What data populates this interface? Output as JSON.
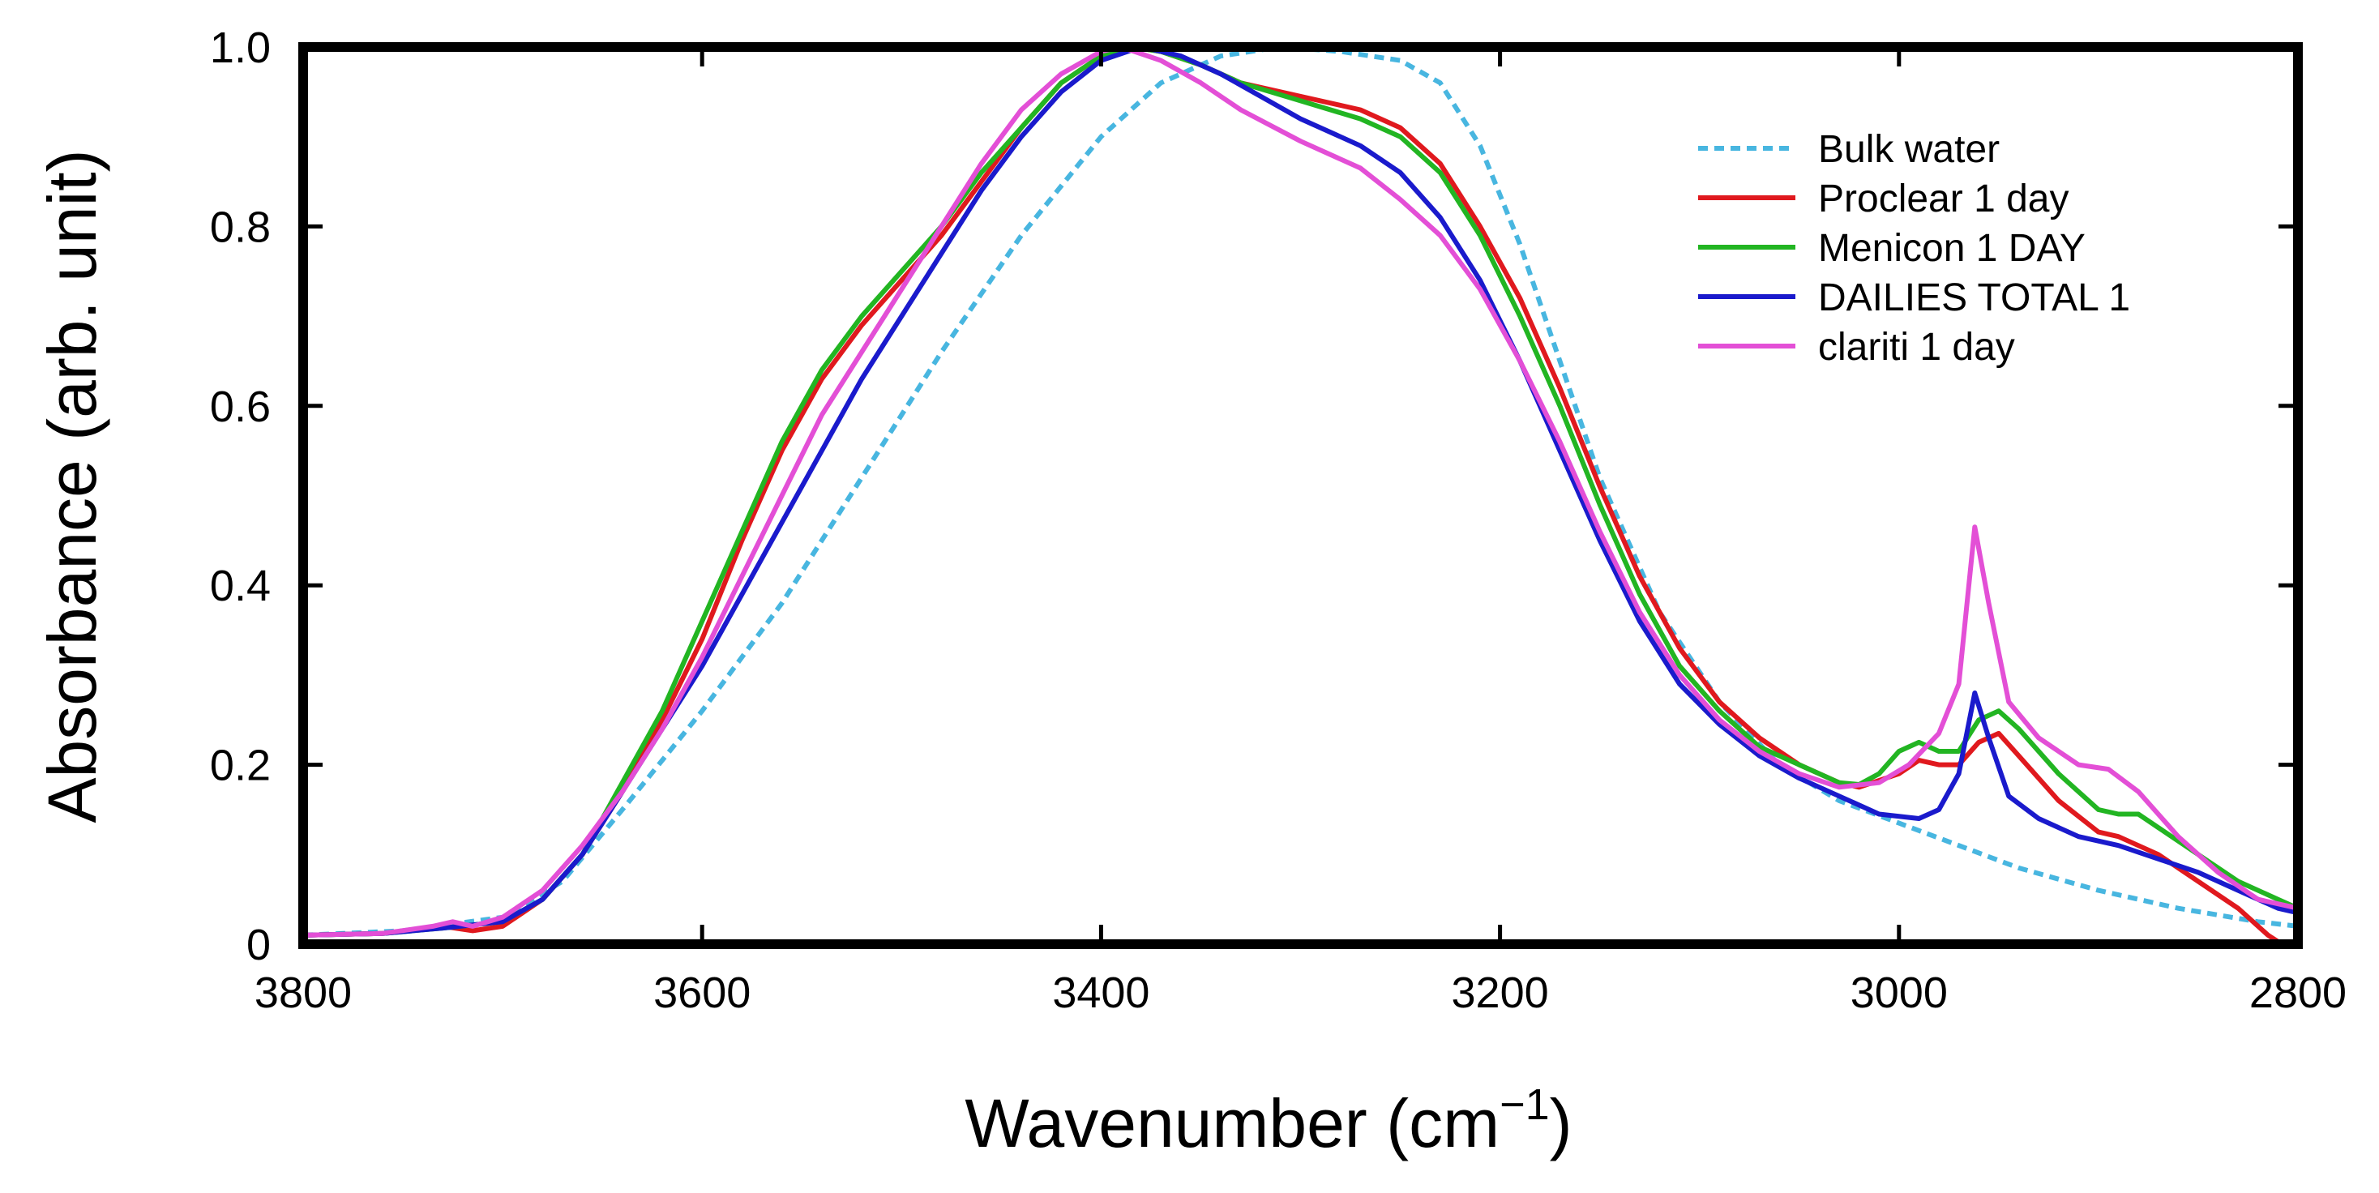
{
  "chart_data": {
    "type": "line",
    "title": "",
    "xlabel": "Wavenumber (cm",
    "xlabel_sup": "−1",
    "xlabel_close": ")",
    "ylabel": "Absorbance (arb. unit)",
    "xlim": [
      3800,
      2800
    ],
    "ylim": [
      0,
      1.0
    ],
    "x_reversed": true,
    "x_ticks": [
      3800,
      3600,
      3400,
      3200,
      3000,
      2800
    ],
    "x_tick_labels": [
      "3800",
      "3600",
      "3400",
      "3200",
      "3000",
      "2800"
    ],
    "y_ticks": [
      0,
      0.2,
      0.4,
      0.6,
      0.8,
      1.0
    ],
    "y_tick_labels": [
      "0",
      "0.2",
      "0.4",
      "0.6",
      "0.8",
      "1.0"
    ],
    "legend_position": "top-right",
    "grid": false,
    "series": [
      {
        "name": "Bulk water",
        "color": "#48b6e0",
        "dashed": true,
        "points": [
          [
            3800,
            0.01
          ],
          [
            3750,
            0.015
          ],
          [
            3700,
            0.03
          ],
          [
            3670,
            0.07
          ],
          [
            3640,
            0.15
          ],
          [
            3600,
            0.26
          ],
          [
            3560,
            0.38
          ],
          [
            3520,
            0.52
          ],
          [
            3480,
            0.66
          ],
          [
            3440,
            0.79
          ],
          [
            3400,
            0.9
          ],
          [
            3370,
            0.96
          ],
          [
            3340,
            0.99
          ],
          [
            3310,
            1.0
          ],
          [
            3280,
            0.995
          ],
          [
            3250,
            0.985
          ],
          [
            3230,
            0.96
          ],
          [
            3210,
            0.89
          ],
          [
            3190,
            0.78
          ],
          [
            3170,
            0.65
          ],
          [
            3150,
            0.52
          ],
          [
            3120,
            0.37
          ],
          [
            3090,
            0.27
          ],
          [
            3060,
            0.2
          ],
          [
            3030,
            0.16
          ],
          [
            3000,
            0.135
          ],
          [
            2970,
            0.11
          ],
          [
            2940,
            0.085
          ],
          [
            2900,
            0.06
          ],
          [
            2860,
            0.04
          ],
          [
            2820,
            0.025
          ],
          [
            2800,
            0.02
          ]
        ]
      },
      {
        "name": "Proclear 1 day",
        "color": "#e0191e",
        "dashed": false,
        "points": [
          [
            3800,
            0.01
          ],
          [
            3760,
            0.012
          ],
          [
            3730,
            0.02
          ],
          [
            3715,
            0.015
          ],
          [
            3700,
            0.02
          ],
          [
            3680,
            0.05
          ],
          [
            3660,
            0.1
          ],
          [
            3640,
            0.17
          ],
          [
            3620,
            0.25
          ],
          [
            3600,
            0.34
          ],
          [
            3580,
            0.45
          ],
          [
            3560,
            0.55
          ],
          [
            3540,
            0.63
          ],
          [
            3520,
            0.69
          ],
          [
            3500,
            0.74
          ],
          [
            3480,
            0.79
          ],
          [
            3460,
            0.85
          ],
          [
            3440,
            0.91
          ],
          [
            3420,
            0.96
          ],
          [
            3400,
            0.99
          ],
          [
            3385,
            1.0
          ],
          [
            3370,
            0.995
          ],
          [
            3350,
            0.98
          ],
          [
            3330,
            0.96
          ],
          [
            3300,
            0.945
          ],
          [
            3270,
            0.93
          ],
          [
            3250,
            0.91
          ],
          [
            3230,
            0.87
          ],
          [
            3210,
            0.8
          ],
          [
            3190,
            0.72
          ],
          [
            3170,
            0.62
          ],
          [
            3150,
            0.51
          ],
          [
            3130,
            0.41
          ],
          [
            3110,
            0.33
          ],
          [
            3090,
            0.27
          ],
          [
            3070,
            0.23
          ],
          [
            3050,
            0.2
          ],
          [
            3030,
            0.18
          ],
          [
            3020,
            0.175
          ],
          [
            3000,
            0.19
          ],
          [
            2990,
            0.205
          ],
          [
            2980,
            0.2
          ],
          [
            2970,
            0.2
          ],
          [
            2960,
            0.225
          ],
          [
            2950,
            0.235
          ],
          [
            2940,
            0.21
          ],
          [
            2920,
            0.16
          ],
          [
            2900,
            0.125
          ],
          [
            2890,
            0.12
          ],
          [
            2870,
            0.1
          ],
          [
            2850,
            0.07
          ],
          [
            2830,
            0.04
          ],
          [
            2815,
            0.01
          ],
          [
            2808,
            0.0
          ]
        ]
      },
      {
        "name": "Menicon 1 DAY",
        "color": "#22b522",
        "dashed": false,
        "points": [
          [
            3800,
            0.01
          ],
          [
            3760,
            0.012
          ],
          [
            3730,
            0.018
          ],
          [
            3700,
            0.025
          ],
          [
            3680,
            0.05
          ],
          [
            3660,
            0.1
          ],
          [
            3640,
            0.18
          ],
          [
            3620,
            0.26
          ],
          [
            3600,
            0.36
          ],
          [
            3580,
            0.46
          ],
          [
            3560,
            0.56
          ],
          [
            3540,
            0.64
          ],
          [
            3520,
            0.7
          ],
          [
            3500,
            0.75
          ],
          [
            3480,
            0.8
          ],
          [
            3460,
            0.86
          ],
          [
            3440,
            0.91
          ],
          [
            3420,
            0.96
          ],
          [
            3400,
            0.99
          ],
          [
            3385,
            1.0
          ],
          [
            3370,
            0.995
          ],
          [
            3350,
            0.98
          ],
          [
            3330,
            0.96
          ],
          [
            3300,
            0.94
          ],
          [
            3270,
            0.92
          ],
          [
            3250,
            0.9
          ],
          [
            3230,
            0.86
          ],
          [
            3210,
            0.79
          ],
          [
            3190,
            0.7
          ],
          [
            3170,
            0.6
          ],
          [
            3150,
            0.49
          ],
          [
            3130,
            0.39
          ],
          [
            3110,
            0.31
          ],
          [
            3090,
            0.26
          ],
          [
            3070,
            0.22
          ],
          [
            3050,
            0.2
          ],
          [
            3030,
            0.18
          ],
          [
            3020,
            0.178
          ],
          [
            3010,
            0.19
          ],
          [
            3000,
            0.215
          ],
          [
            2990,
            0.225
          ],
          [
            2980,
            0.215
          ],
          [
            2970,
            0.215
          ],
          [
            2960,
            0.25
          ],
          [
            2950,
            0.26
          ],
          [
            2940,
            0.24
          ],
          [
            2920,
            0.19
          ],
          [
            2900,
            0.15
          ],
          [
            2890,
            0.145
          ],
          [
            2880,
            0.145
          ],
          [
            2870,
            0.13
          ],
          [
            2850,
            0.1
          ],
          [
            2830,
            0.07
          ],
          [
            2810,
            0.05
          ],
          [
            2800,
            0.04
          ]
        ]
      },
      {
        "name": "DAILIES TOTAL 1",
        "color": "#1a1acc",
        "dashed": false,
        "points": [
          [
            3800,
            0.01
          ],
          [
            3760,
            0.012
          ],
          [
            3730,
            0.018
          ],
          [
            3700,
            0.025
          ],
          [
            3680,
            0.05
          ],
          [
            3660,
            0.1
          ],
          [
            3640,
            0.17
          ],
          [
            3620,
            0.24
          ],
          [
            3600,
            0.31
          ],
          [
            3580,
            0.39
          ],
          [
            3560,
            0.47
          ],
          [
            3540,
            0.55
          ],
          [
            3520,
            0.63
          ],
          [
            3500,
            0.7
          ],
          [
            3480,
            0.77
          ],
          [
            3460,
            0.84
          ],
          [
            3440,
            0.9
          ],
          [
            3420,
            0.95
          ],
          [
            3400,
            0.985
          ],
          [
            3380,
            1.0
          ],
          [
            3360,
            0.99
          ],
          [
            3340,
            0.97
          ],
          [
            3320,
            0.945
          ],
          [
            3300,
            0.92
          ],
          [
            3270,
            0.89
          ],
          [
            3250,
            0.86
          ],
          [
            3230,
            0.81
          ],
          [
            3210,
            0.74
          ],
          [
            3190,
            0.65
          ],
          [
            3170,
            0.55
          ],
          [
            3150,
            0.45
          ],
          [
            3130,
            0.36
          ],
          [
            3110,
            0.29
          ],
          [
            3090,
            0.245
          ],
          [
            3070,
            0.21
          ],
          [
            3050,
            0.185
          ],
          [
            3030,
            0.165
          ],
          [
            3010,
            0.145
          ],
          [
            2990,
            0.14
          ],
          [
            2980,
            0.15
          ],
          [
            2970,
            0.19
          ],
          [
            2962,
            0.28
          ],
          [
            2955,
            0.23
          ],
          [
            2945,
            0.165
          ],
          [
            2930,
            0.14
          ],
          [
            2910,
            0.12
          ],
          [
            2890,
            0.11
          ],
          [
            2870,
            0.095
          ],
          [
            2850,
            0.08
          ],
          [
            2830,
            0.06
          ],
          [
            2810,
            0.04
          ],
          [
            2800,
            0.035
          ]
        ]
      },
      {
        "name": "clariti 1 day",
        "color": "#e34fd6",
        "dashed": false,
        "points": [
          [
            3800,
            0.01
          ],
          [
            3760,
            0.012
          ],
          [
            3735,
            0.02
          ],
          [
            3725,
            0.025
          ],
          [
            3715,
            0.02
          ],
          [
            3700,
            0.03
          ],
          [
            3680,
            0.06
          ],
          [
            3660,
            0.11
          ],
          [
            3640,
            0.17
          ],
          [
            3620,
            0.24
          ],
          [
            3600,
            0.32
          ],
          [
            3580,
            0.41
          ],
          [
            3560,
            0.5
          ],
          [
            3540,
            0.59
          ],
          [
            3520,
            0.66
          ],
          [
            3500,
            0.73
          ],
          [
            3480,
            0.8
          ],
          [
            3460,
            0.87
          ],
          [
            3440,
            0.93
          ],
          [
            3420,
            0.97
          ],
          [
            3400,
            0.995
          ],
          [
            3390,
            1.0
          ],
          [
            3370,
            0.985
          ],
          [
            3350,
            0.96
          ],
          [
            3330,
            0.93
          ],
          [
            3300,
            0.895
          ],
          [
            3270,
            0.865
          ],
          [
            3250,
            0.83
          ],
          [
            3230,
            0.79
          ],
          [
            3210,
            0.73
          ],
          [
            3190,
            0.65
          ],
          [
            3170,
            0.56
          ],
          [
            3150,
            0.46
          ],
          [
            3130,
            0.37
          ],
          [
            3110,
            0.3
          ],
          [
            3090,
            0.25
          ],
          [
            3070,
            0.215
          ],
          [
            3050,
            0.19
          ],
          [
            3030,
            0.175
          ],
          [
            3010,
            0.18
          ],
          [
            2995,
            0.2
          ],
          [
            2980,
            0.235
          ],
          [
            2970,
            0.29
          ],
          [
            2962,
            0.465
          ],
          [
            2955,
            0.38
          ],
          [
            2945,
            0.27
          ],
          [
            2930,
            0.23
          ],
          [
            2910,
            0.2
          ],
          [
            2895,
            0.195
          ],
          [
            2880,
            0.17
          ],
          [
            2860,
            0.12
          ],
          [
            2840,
            0.08
          ],
          [
            2820,
            0.05
          ],
          [
            2800,
            0.04
          ]
        ]
      }
    ]
  }
}
